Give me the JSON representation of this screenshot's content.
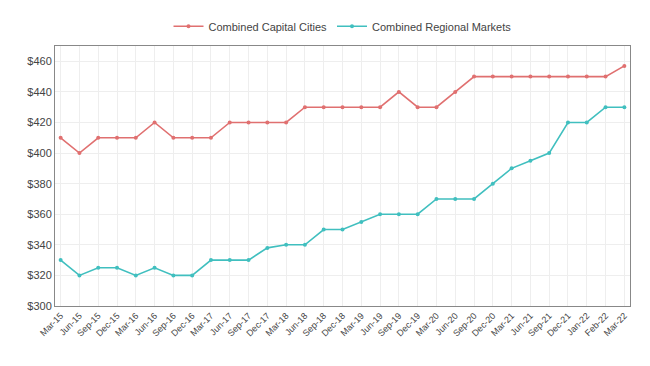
{
  "chart_data": {
    "type": "line",
    "categories": [
      "Mar-15",
      "Jun-15",
      "Sep-15",
      "Dec-15",
      "Mar-16",
      "Jun-16",
      "Sep-16",
      "Dec-16",
      "Mar-17",
      "Jun-17",
      "Sep-17",
      "Dec-17",
      "Mar-18",
      "Jun-18",
      "Sep-18",
      "Dec-18",
      "Mar-19",
      "Jun-19",
      "Sep-19",
      "Dec-19",
      "Mar-20",
      "Jun-20",
      "Sep-20",
      "Dec-20",
      "Mar-21",
      "Jun-21",
      "Sep-21",
      "Dec-21",
      "Jan-22",
      "Feb-22",
      "Mar-22"
    ],
    "series": [
      {
        "name": "Combined Capital Cities",
        "color": "#e07070",
        "marker": "circle",
        "values": [
          410,
          400,
          410,
          410,
          410,
          420,
          410,
          410,
          410,
          420,
          420,
          420,
          420,
          430,
          430,
          430,
          430,
          430,
          440,
          430,
          430,
          440,
          450,
          450,
          450,
          450,
          450,
          450,
          450,
          450,
          457
        ]
      },
      {
        "name": "Combined Regional Markets",
        "color": "#40bfbf",
        "marker": "circle",
        "values": [
          330,
          320,
          325,
          325,
          320,
          325,
          320,
          320,
          330,
          330,
          330,
          338,
          340,
          340,
          350,
          350,
          355,
          360,
          360,
          360,
          370,
          370,
          370,
          380,
          390,
          395,
          400,
          420,
          420,
          430,
          430
        ]
      }
    ],
    "ylim": [
      300,
      470
    ],
    "yticks": [
      {
        "value": 300,
        "label": "$300"
      },
      {
        "value": 320,
        "label": "$320"
      },
      {
        "value": 340,
        "label": "$340"
      },
      {
        "value": 360,
        "label": "$360"
      },
      {
        "value": 380,
        "label": "$380"
      },
      {
        "value": 400,
        "label": "$400"
      },
      {
        "value": 420,
        "label": "$420"
      },
      {
        "value": 440,
        "label": "$440"
      },
      {
        "value": 460,
        "label": "$460"
      }
    ],
    "grid": true,
    "legend": "top"
  }
}
